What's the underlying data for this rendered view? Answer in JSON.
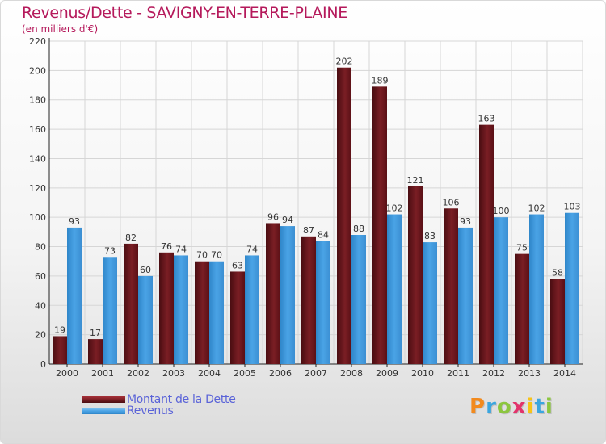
{
  "title": "Revenus/Dette - SAVIGNY-EN-TERRE-PLAINE",
  "subtitle": "(en milliers d'€)",
  "brand": {
    "text": "Proxiti",
    "letters": [
      "P",
      "r",
      "o",
      "x",
      "i",
      "t",
      "i"
    ],
    "colors": [
      "#f28a1e",
      "#3aa6e0",
      "#8cc63f",
      "#e2336b",
      "#f7c318",
      "#3aa6e0",
      "#8cc63f"
    ]
  },
  "colors": {
    "dette": "#7a1e24",
    "revenus": "#4aa3e6",
    "title": "#b5195b",
    "legend_text": "#5a63d8"
  },
  "chart_data": {
    "type": "bar",
    "title": "Revenus/Dette - SAVIGNY-EN-TERRE-PLAINE",
    "ylabel": "(en milliers d'€)",
    "xlabel": "",
    "ylim": [
      0,
      220
    ],
    "yticks": [
      0,
      20,
      40,
      60,
      80,
      100,
      120,
      140,
      160,
      180,
      200,
      220
    ],
    "grid": true,
    "legend_position": "bottom-left",
    "categories": [
      "2000",
      "2001",
      "2002",
      "2003",
      "2004",
      "2005",
      "2006",
      "2007",
      "2008",
      "2009",
      "2010",
      "2011",
      "2012",
      "2013",
      "2014"
    ],
    "series": [
      {
        "name": "Montant de la Dette",
        "values": [
          19,
          17,
          82,
          76,
          70,
          63,
          96,
          87,
          202,
          189,
          121,
          106,
          163,
          75,
          58
        ]
      },
      {
        "name": "Revenus",
        "values": [
          93,
          73,
          60,
          74,
          70,
          74,
          94,
          84,
          88,
          102,
          83,
          93,
          100,
          102,
          103
        ]
      }
    ]
  }
}
